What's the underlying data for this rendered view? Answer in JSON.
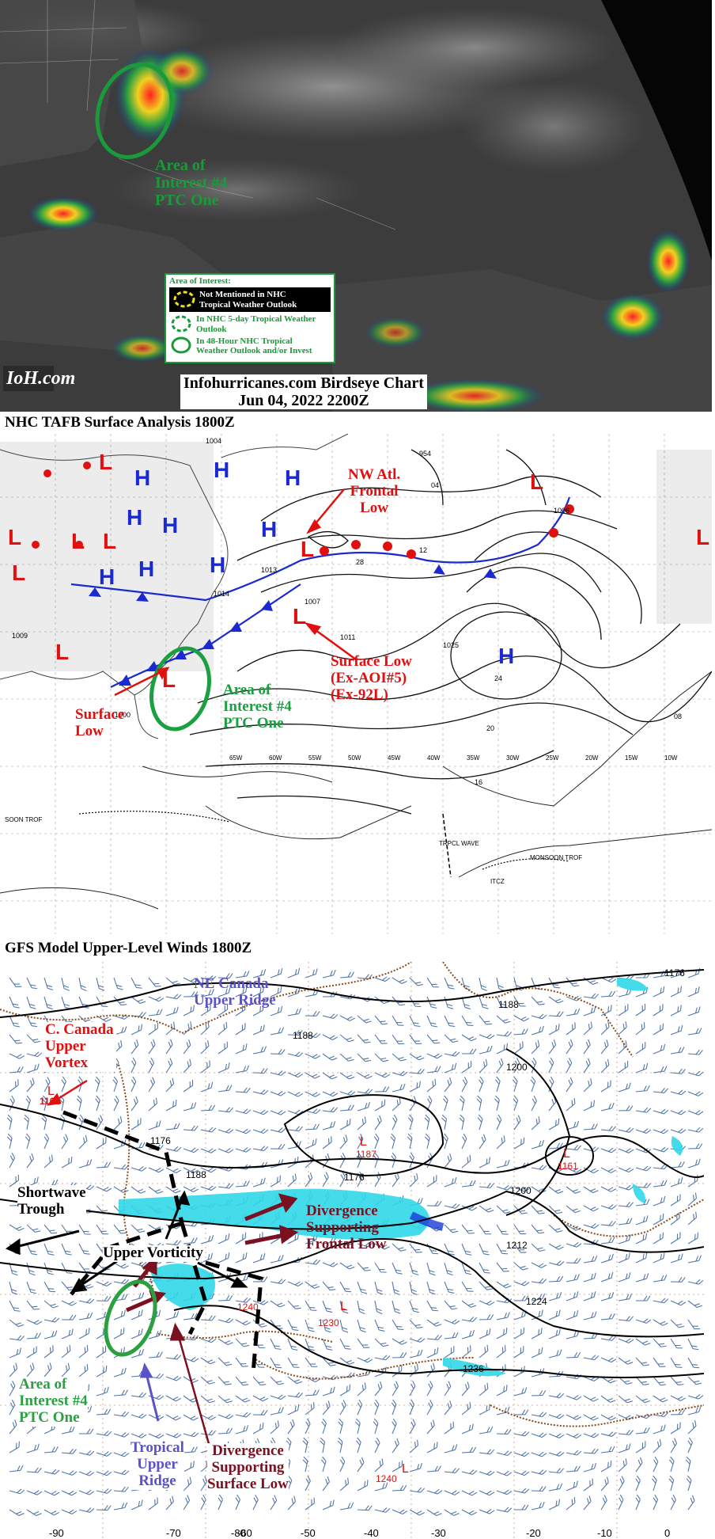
{
  "panel1": {
    "aoi4_label": [
      "Area of",
      "Interest #4",
      "PTC One"
    ],
    "legend": {
      "title": "Area of Interest:",
      "not_mentioned": [
        "Not Mentioned in NHC",
        "Tropical Weather Outlook"
      ],
      "in_5day": [
        "In NHC 5-day Tropical Weather",
        "Outlook"
      ],
      "in_48hr": [
        "In 48-Hour NHC Tropical",
        "Weather Outlook and/or Invest"
      ]
    },
    "logo": "IoH.com",
    "chart_title": "Infohurricanes.com Birdseye Chart",
    "chart_date": "Jun 04, 2022 2200Z",
    "colors": {
      "aoi_green": "#1a9a3a",
      "satellite_bg": "#3a3a3a"
    }
  },
  "panel2": {
    "title": "NHC TAFB Surface Analysis 1800Z",
    "nw_atl_label": [
      "NW Atl.",
      "Frontal",
      "Low"
    ],
    "surface_low_ex_label": [
      "Surface Low",
      "(Ex-AOI#5)",
      "(Ex-92L)"
    ],
    "surface_low_label": [
      "Surface",
      "Low"
    ],
    "aoi4_label": [
      "Area of",
      "Interest #4",
      "PTC One"
    ],
    "isobars": [
      "954",
      "1004",
      "1007",
      "1011",
      "1013",
      "1014",
      "1025",
      "12",
      "16",
      "20",
      "24",
      "28",
      "04",
      "08",
      "1006",
      "1009",
      "1000"
    ],
    "longitudes": [
      "65W",
      "60W",
      "55W",
      "50W",
      "45W",
      "40W",
      "35W",
      "30W",
      "25W",
      "20W",
      "15W",
      "10W"
    ],
    "features": [
      "TRPCL WAVE",
      "MONSOON TROF",
      "ITCZ",
      "SOON TROF"
    ],
    "high_symbol": "H",
    "low_symbol": "L",
    "colors": {
      "low_red": "#e01010",
      "high_blue": "#1a2ad0",
      "front_blue": "#1a2ad0",
      "front_red": "#e01010"
    }
  },
  "panel3": {
    "title": "GFS Model Upper-Level Winds 1800Z",
    "ne_canada": [
      "NE Canada",
      "Upper Ridge"
    ],
    "c_canada": [
      "C. Canada",
      "Upper",
      "Vortex"
    ],
    "shortwave": [
      "Shortwave",
      "Trough"
    ],
    "upper_vorticity": "Upper Vorticity",
    "divergence_frontal": [
      "Divergence",
      "Supporting",
      "Frontal Low"
    ],
    "aoi4_label": [
      "Area of",
      "Interest #4",
      "PTC One"
    ],
    "tropical_ridge": [
      "Tropical",
      "Upper",
      "Ridge"
    ],
    "divergence_surface": [
      "Divergence",
      "Supporting",
      "Surface Low"
    ],
    "contour_labels": [
      "1176",
      "1188",
      "1188",
      "1200",
      "1200",
      "1176",
      "1176",
      "1212",
      "1224",
      "1236",
      "1188"
    ],
    "low_values": [
      "1162",
      "1187",
      "1161",
      "1230",
      "1240",
      "1240"
    ],
    "longitudes": [
      "-90",
      "-80",
      "-70",
      "-60",
      "-50",
      "-40",
      "-30",
      "-20",
      "-10",
      "0"
    ],
    "colors": {
      "barb_blue": "#1a4a8a",
      "coast_brown": "#8a4a1a",
      "vort_cyan": "#30d8e8",
      "arrow_maroon": "#7a1020",
      "label_red": "#e01010",
      "label_purple": "#5a52c8",
      "label_green": "#2aa040"
    }
  }
}
